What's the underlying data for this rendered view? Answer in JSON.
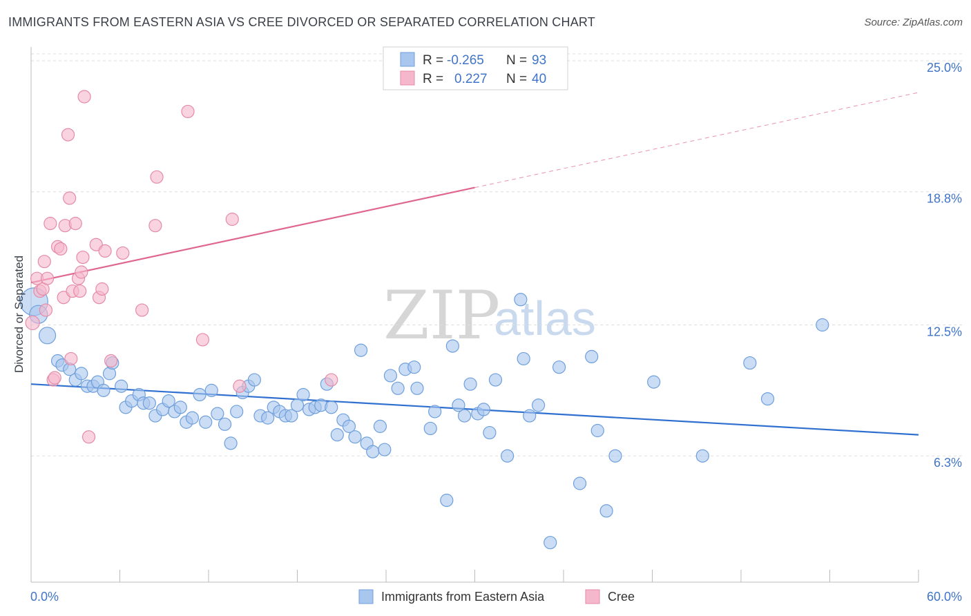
{
  "header": {
    "title": "IMMIGRANTS FROM EASTERN ASIA VS CREE DIVORCED OR SEPARATED CORRELATION CHART",
    "source": "Source: ZipAtlas.com"
  },
  "watermark": {
    "part1": "ZIP",
    "part2": "atlas"
  },
  "legend_top": {
    "rows": [
      {
        "r_label": "R =",
        "r_value": "-0.265",
        "n_label": "N =",
        "n_value": "93",
        "color": "#a9c6ee"
      },
      {
        "r_label": "R =",
        "r_value": "0.227",
        "n_label": "N =",
        "n_value": "40",
        "color": "#f5b7cb"
      }
    ]
  },
  "legend_bottom": {
    "items": [
      {
        "label": "Immigrants from Eastern Asia",
        "color": "#a9c6ee"
      },
      {
        "label": "Cree",
        "color": "#f5b7cb"
      }
    ]
  },
  "colors": {
    "blue_fill": "#a9c6ee",
    "blue_stroke": "#6e9fdc",
    "blue_line": "#2f6fd0",
    "pink_fill": "#f5b7cb",
    "pink_stroke": "#e58aa6",
    "pink_line": "#e06690",
    "axis_label": "#3f74c8",
    "grid": "#dddddd"
  },
  "chart_data": {
    "type": "scatter",
    "title": "IMMIGRANTS FROM EASTERN ASIA VS CREE DIVORCED OR SEPARATED CORRELATION CHART",
    "xlabel": "",
    "ylabel": "Divorced or Separated",
    "xlim": [
      0,
      60
    ],
    "ylim": [
      0,
      26.2
    ],
    "x_tick_labels": [
      "0.0%",
      "60.0%"
    ],
    "y_ticks": [
      6.3,
      12.5,
      18.8,
      25.0
    ],
    "y_tick_labels": [
      "6.3%",
      "12.5%",
      "18.8%",
      "25.0%"
    ],
    "grid": "horizontal dashed",
    "legend_position": "top-center",
    "series": [
      {
        "name": "Immigrants from Eastern Asia",
        "color": "#a9c6ee",
        "trend": {
          "x0": 0,
          "y0": 9.7,
          "x1": 60,
          "y1": 7.3
        },
        "points": [
          [
            0.2,
            13.6,
            20
          ],
          [
            0.5,
            13.0,
            13
          ],
          [
            1.1,
            12.0,
            12
          ],
          [
            1.8,
            10.8,
            9
          ],
          [
            2.1,
            10.6,
            9
          ],
          [
            2.6,
            10.4,
            9
          ],
          [
            3.0,
            9.9,
            9
          ],
          [
            3.4,
            10.2,
            9
          ],
          [
            3.8,
            9.6,
            9
          ],
          [
            4.2,
            9.6,
            9
          ],
          [
            4.5,
            9.8,
            9
          ],
          [
            4.9,
            9.4,
            9
          ],
          [
            5.3,
            10.2,
            9
          ],
          [
            5.5,
            10.7,
            9
          ],
          [
            6.1,
            9.6,
            9
          ],
          [
            6.4,
            8.6,
            9
          ],
          [
            6.8,
            8.9,
            9
          ],
          [
            7.3,
            9.2,
            9
          ],
          [
            7.6,
            8.8,
            9
          ],
          [
            8.0,
            8.8,
            9
          ],
          [
            8.4,
            8.2,
            9
          ],
          [
            8.9,
            8.5,
            9
          ],
          [
            9.3,
            8.9,
            9
          ],
          [
            9.7,
            8.4,
            9
          ],
          [
            10.1,
            8.6,
            9
          ],
          [
            10.5,
            7.9,
            9
          ],
          [
            10.9,
            8.1,
            9
          ],
          [
            11.4,
            9.2,
            9
          ],
          [
            11.8,
            7.9,
            9
          ],
          [
            12.2,
            9.4,
            9
          ],
          [
            12.6,
            8.3,
            9
          ],
          [
            13.1,
            7.8,
            9
          ],
          [
            13.5,
            6.9,
            9
          ],
          [
            13.9,
            8.4,
            9
          ],
          [
            14.3,
            9.3,
            9
          ],
          [
            14.7,
            9.6,
            9
          ],
          [
            15.1,
            9.9,
            9
          ],
          [
            15.5,
            8.2,
            9
          ],
          [
            16.0,
            8.1,
            9
          ],
          [
            16.4,
            8.6,
            9
          ],
          [
            16.8,
            8.4,
            9
          ],
          [
            17.2,
            8.2,
            9
          ],
          [
            17.6,
            8.2,
            9
          ],
          [
            18.0,
            8.7,
            9
          ],
          [
            18.4,
            9.2,
            9
          ],
          [
            18.8,
            8.5,
            9
          ],
          [
            19.2,
            8.6,
            9
          ],
          [
            19.6,
            8.7,
            9
          ],
          [
            20.0,
            9.7,
            9
          ],
          [
            20.3,
            8.6,
            9
          ],
          [
            20.7,
            7.3,
            9
          ],
          [
            21.1,
            8.0,
            9
          ],
          [
            21.5,
            7.7,
            9
          ],
          [
            21.9,
            7.2,
            9
          ],
          [
            22.3,
            11.3,
            9
          ],
          [
            22.7,
            6.9,
            9
          ],
          [
            23.1,
            6.5,
            9
          ],
          [
            23.6,
            7.7,
            9
          ],
          [
            23.9,
            6.6,
            9
          ],
          [
            24.3,
            10.1,
            9
          ],
          [
            24.8,
            9.5,
            9
          ],
          [
            25.3,
            10.4,
            9
          ],
          [
            25.9,
            10.5,
            9
          ],
          [
            26.1,
            9.5,
            9
          ],
          [
            27.0,
            7.6,
            9
          ],
          [
            27.3,
            8.4,
            9
          ],
          [
            28.1,
            4.2,
            9
          ],
          [
            28.5,
            11.5,
            9
          ],
          [
            28.9,
            8.7,
            9
          ],
          [
            29.3,
            8.2,
            9
          ],
          [
            29.7,
            9.7,
            9
          ],
          [
            30.2,
            8.3,
            9
          ],
          [
            30.6,
            8.5,
            9
          ],
          [
            31.0,
            7.4,
            9
          ],
          [
            31.4,
            9.9,
            9
          ],
          [
            32.2,
            6.3,
            9
          ],
          [
            33.1,
            13.7,
            9
          ],
          [
            33.3,
            10.9,
            9
          ],
          [
            33.7,
            8.2,
            9
          ],
          [
            34.3,
            8.7,
            9
          ],
          [
            35.1,
            2.2,
            9
          ],
          [
            35.7,
            10.5,
            9
          ],
          [
            37.1,
            5.0,
            9
          ],
          [
            37.9,
            11.0,
            9
          ],
          [
            38.3,
            7.5,
            9
          ],
          [
            38.9,
            3.7,
            9
          ],
          [
            39.5,
            6.3,
            9
          ],
          [
            42.1,
            9.8,
            9
          ],
          [
            45.4,
            6.3,
            9
          ],
          [
            48.6,
            10.7,
            9
          ],
          [
            49.8,
            9.0,
            9
          ],
          [
            53.5,
            12.5,
            9
          ]
        ]
      },
      {
        "name": "Cree",
        "color": "#f5b7cb",
        "trend": {
          "x0": 0,
          "y0": 14.5,
          "x1": 30,
          "y1": 19.0,
          "dash_to_x": 60,
          "dash_to_y": 23.5
        },
        "points": [
          [
            0.1,
            12.6,
            10
          ],
          [
            0.4,
            14.7,
            9
          ],
          [
            0.6,
            14.1,
            9
          ],
          [
            0.8,
            14.2,
            9
          ],
          [
            0.9,
            15.5,
            9
          ],
          [
            1.0,
            13.2,
            9
          ],
          [
            1.1,
            14.7,
            9
          ],
          [
            1.3,
            17.3,
            9
          ],
          [
            1.5,
            9.9,
            9
          ],
          [
            1.6,
            10.0,
            9
          ],
          [
            1.8,
            16.2,
            9
          ],
          [
            2.0,
            16.1,
            9
          ],
          [
            2.2,
            13.8,
            9
          ],
          [
            2.3,
            17.2,
            9
          ],
          [
            2.5,
            21.5,
            9
          ],
          [
            2.6,
            18.5,
            9
          ],
          [
            2.7,
            10.9,
            9
          ],
          [
            2.8,
            14.1,
            9
          ],
          [
            3.0,
            17.3,
            9
          ],
          [
            3.2,
            14.7,
            9
          ],
          [
            3.3,
            14.1,
            9
          ],
          [
            3.4,
            15.0,
            9
          ],
          [
            3.5,
            15.7,
            9
          ],
          [
            3.6,
            23.3,
            9
          ],
          [
            3.9,
            7.2,
            9
          ],
          [
            4.4,
            16.3,
            9
          ],
          [
            4.6,
            13.8,
            9
          ],
          [
            4.8,
            14.2,
            9
          ],
          [
            5.0,
            16.0,
            9
          ],
          [
            5.4,
            10.8,
            9
          ],
          [
            8.4,
            17.2,
            9
          ],
          [
            8.5,
            19.5,
            9
          ],
          [
            10.6,
            22.6,
            9
          ],
          [
            11.6,
            11.8,
            9
          ],
          [
            13.6,
            17.5,
            9
          ],
          [
            14.1,
            9.6,
            9
          ],
          [
            20.3,
            9.9,
            9
          ],
          [
            28.2,
            24.1,
            9
          ],
          [
            7.5,
            13.2,
            9
          ],
          [
            6.2,
            15.9,
            9
          ]
        ]
      }
    ],
    "annotations": []
  }
}
